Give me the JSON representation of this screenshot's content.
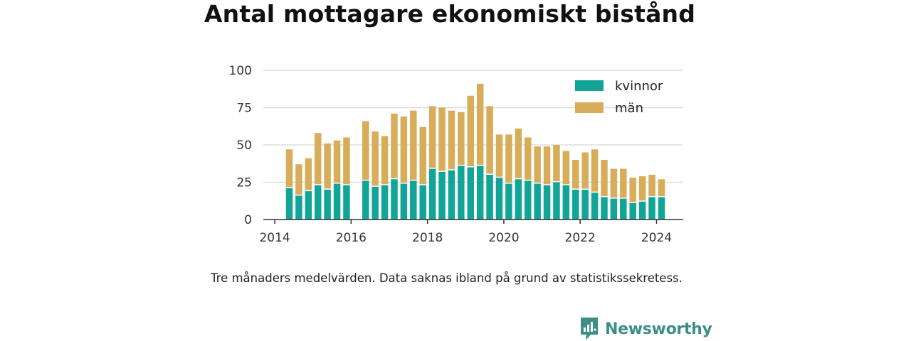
{
  "chart_data": {
    "type": "bar",
    "stacked": true,
    "title": "Antal mottagare ekonomiskt bistånd",
    "caption": "Tre månaders medelvärden. Data saknas ibland på grund av statistikssekretess.",
    "xlabel": "",
    "ylabel": "",
    "ylim": [
      0,
      100
    ],
    "yticks": [
      0,
      25,
      50,
      75,
      100
    ],
    "xticks": [
      2014,
      2016,
      2018,
      2020,
      2022,
      2024
    ],
    "xlim": [
      2013.7,
      2024.7
    ],
    "grid": true,
    "legend_position": "top-right",
    "x": [
      2014.38,
      2014.63,
      2014.88,
      2015.13,
      2015.38,
      2015.63,
      2015.88,
      2016.38,
      2016.63,
      2016.88,
      2017.13,
      2017.38,
      2017.63,
      2017.88,
      2018.13,
      2018.38,
      2018.63,
      2018.88,
      2019.13,
      2019.38,
      2019.63,
      2019.88,
      2020.13,
      2020.38,
      2020.63,
      2020.88,
      2021.13,
      2021.38,
      2021.63,
      2021.88,
      2022.13,
      2022.38,
      2022.63,
      2022.88,
      2023.13,
      2023.38,
      2023.63,
      2023.88,
      2024.13
    ],
    "series": [
      {
        "name": "kvinnor",
        "color": "#12a597",
        "values": [
          21,
          16,
          19,
          23,
          20,
          24,
          23,
          26,
          22,
          23,
          27,
          24,
          26,
          23,
          34,
          32,
          33,
          36,
          35,
          36,
          30,
          28,
          24,
          27,
          26,
          24,
          23,
          25,
          23,
          20,
          20,
          18,
          15,
          14,
          14,
          11,
          12,
          15,
          15
        ]
      },
      {
        "name": "män",
        "color": "#d8ad5a",
        "values": [
          26,
          21,
          22,
          35,
          31,
          29,
          32,
          40,
          37,
          33,
          44,
          45,
          47,
          39,
          42,
          43,
          40,
          36,
          48,
          55,
          46,
          29,
          33,
          34,
          29,
          25,
          26,
          25,
          23,
          20,
          25,
          29,
          25,
          20,
          20,
          17,
          17,
          15,
          12
        ]
      }
    ]
  },
  "brand": {
    "name": "Newsworthy",
    "logo_icon": "bar-chart-speech-bubble-icon",
    "color": "#3d8f86"
  }
}
